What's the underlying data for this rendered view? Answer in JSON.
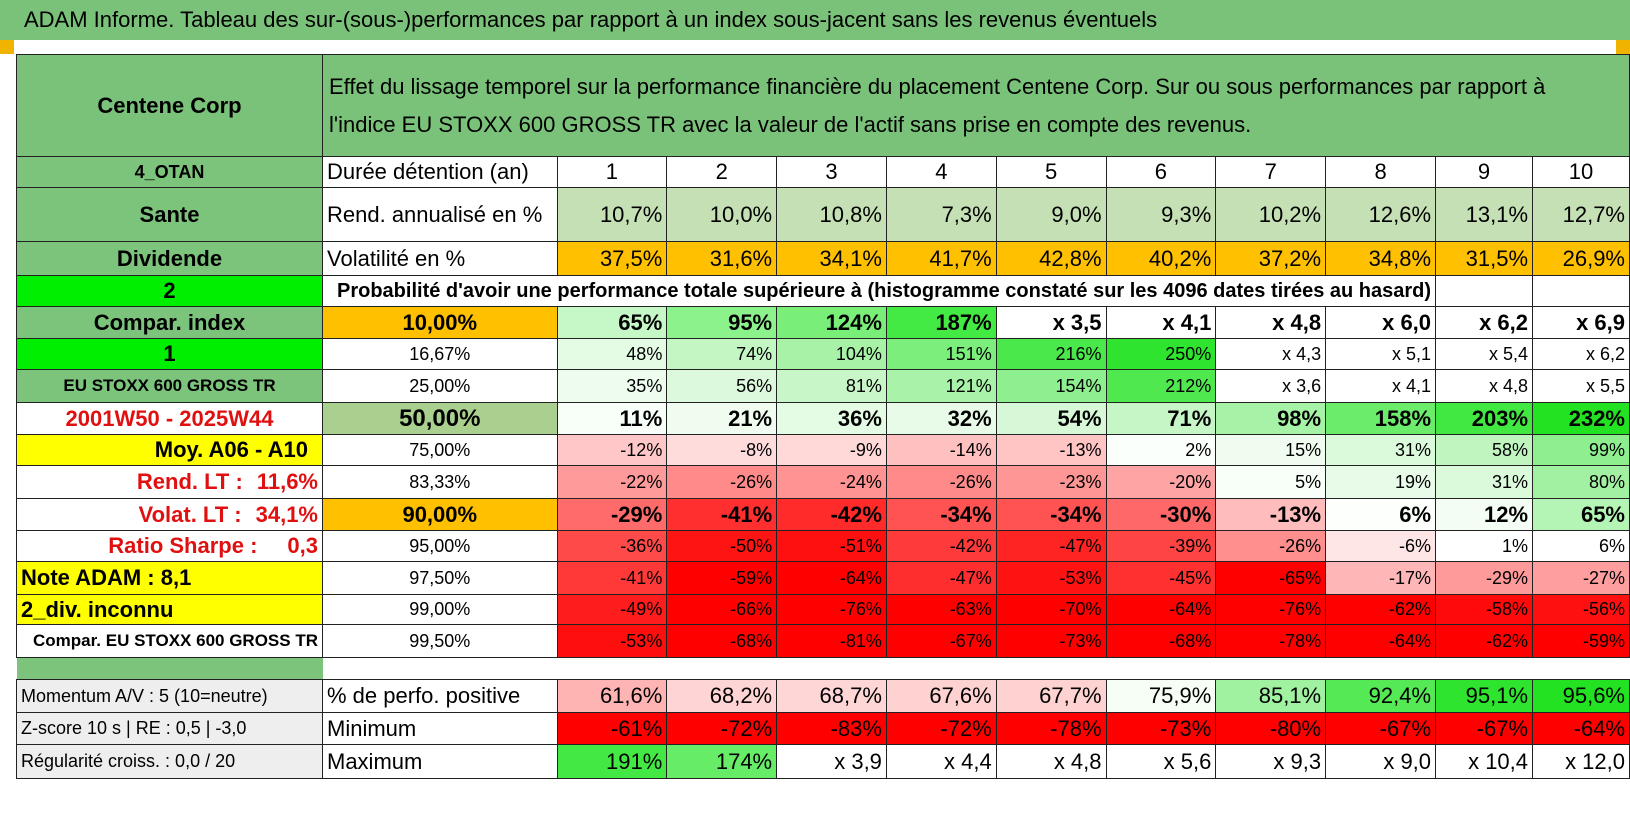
{
  "window_title": "ADAM Informe. Tableau des sur-(sous-)performances par rapport à un index sous-jacent sans les revenus éventuels",
  "header": {
    "company": "Centene Corp",
    "description_line1": "Effet du lissage temporel sur la performance financière du placement Centene Corp. Sur ou sous performances par rapport à",
    "description_line2": "l'indice EU STOXX 600 GROSS TR avec la valeur de l'actif sans prise en compte des revenus."
  },
  "colors": {
    "title_green": "#7ac27a",
    "orange": "#ffc000",
    "yellow": "#ffff00",
    "bright_green": "#00ee00",
    "red_text": "#e01010"
  },
  "left_labels": {
    "code": "4_OTAN",
    "sector": "Sante",
    "type": "Dividende",
    "choice2": "2",
    "compar_index": "Compar. index",
    "choice1": "1",
    "index_name": "EU STOXX 600 GROSS TR",
    "period": "2001W50 - 2025W44",
    "moy": "Moy. A06 - A10",
    "rend_lt_label": "Rend. LT :",
    "rend_lt_value": "11,6%",
    "volat_lt_label": "Volat. LT :",
    "volat_lt_value": "34,1%",
    "sharpe_label": "Ratio Sharpe :",
    "sharpe_value": "0,3",
    "note": "Note ADAM : 8,1",
    "div": "2_div. inconnu",
    "compar_full": "Compar. EU STOXX 600 GROSS TR"
  },
  "duration": {
    "label": "Durée détention (an)",
    "years": [
      "1",
      "2",
      "3",
      "4",
      "5",
      "6",
      "7",
      "8",
      "9",
      "10"
    ]
  },
  "rend": {
    "label": "Rend. annualisé en %",
    "values": [
      "10,7%",
      "10,0%",
      "10,8%",
      "7,3%",
      "9,0%",
      "9,3%",
      "10,2%",
      "12,6%",
      "13,1%",
      "12,7%"
    ]
  },
  "volat": {
    "label": "Volatilité en %",
    "values": [
      "37,5%",
      "31,6%",
      "34,1%",
      "41,7%",
      "42,8%",
      "40,2%",
      "37,2%",
      "34,8%",
      "31,5%",
      "26,9%"
    ]
  },
  "prob_title": "Probabilité d'avoir une performance totale supérieure à (histogramme constaté sur les 4096 dates tirées au hasard)",
  "prob_rows": [
    {
      "pct": "10,00%",
      "values": [
        "65%",
        "95%",
        "124%",
        "187%",
        "x 3,5",
        "x 4,1",
        "x 4,8",
        "x 6,0",
        "x 6,2",
        "x 6,9"
      ]
    },
    {
      "pct": "16,67%",
      "values": [
        "48%",
        "74%",
        "104%",
        "151%",
        "216%",
        "250%",
        "x 4,3",
        "x 5,1",
        "x 5,4",
        "x 6,2"
      ]
    },
    {
      "pct": "25,00%",
      "values": [
        "35%",
        "56%",
        "81%",
        "121%",
        "154%",
        "212%",
        "x 3,6",
        "x 4,1",
        "x 4,8",
        "x 5,5"
      ]
    },
    {
      "pct": "50,00%",
      "values": [
        "11%",
        "21%",
        "36%",
        "32%",
        "54%",
        "71%",
        "98%",
        "158%",
        "203%",
        "232%"
      ]
    },
    {
      "pct": "75,00%",
      "values": [
        "-12%",
        "-8%",
        "-9%",
        "-14%",
        "-13%",
        "2%",
        "15%",
        "31%",
        "58%",
        "99%"
      ]
    },
    {
      "pct": "83,33%",
      "values": [
        "-22%",
        "-26%",
        "-24%",
        "-26%",
        "-23%",
        "-20%",
        "5%",
        "19%",
        "31%",
        "80%"
      ]
    },
    {
      "pct": "90,00%",
      "values": [
        "-29%",
        "-41%",
        "-42%",
        "-34%",
        "-34%",
        "-30%",
        "-13%",
        "6%",
        "12%",
        "65%"
      ]
    },
    {
      "pct": "95,00%",
      "values": [
        "-36%",
        "-50%",
        "-51%",
        "-42%",
        "-47%",
        "-39%",
        "-26%",
        "-6%",
        "1%",
        "6%"
      ]
    },
    {
      "pct": "97,50%",
      "values": [
        "-41%",
        "-59%",
        "-64%",
        "-47%",
        "-53%",
        "-45%",
        "-65%",
        "-17%",
        "-29%",
        "-27%"
      ]
    },
    {
      "pct": "99,00%",
      "values": [
        "-49%",
        "-66%",
        "-76%",
        "-63%",
        "-70%",
        "-64%",
        "-76%",
        "-62%",
        "-58%",
        "-56%"
      ]
    },
    {
      "pct": "99,50%",
      "values": [
        "-53%",
        "-68%",
        "-81%",
        "-67%",
        "-73%",
        "-68%",
        "-78%",
        "-64%",
        "-62%",
        "-59%"
      ]
    }
  ],
  "bottom": {
    "momentum": "Momentum A/V : 5 (10=neutre)",
    "zscore": "Z-score 10 s | RE : 0,5 | -3,0",
    "regularite": "Régularité croiss. : 0,0 / 20",
    "pos_label": "% de perfo. positive",
    "pos_values": [
      "61,6%",
      "68,2%",
      "68,7%",
      "67,6%",
      "67,7%",
      "75,9%",
      "85,1%",
      "92,4%",
      "95,1%",
      "95,6%"
    ],
    "min_label": "Minimum",
    "min_values": [
      "-61%",
      "-72%",
      "-83%",
      "-72%",
      "-78%",
      "-73%",
      "-80%",
      "-67%",
      "-67%",
      "-64%"
    ],
    "max_label": "Maximum",
    "max_values": [
      "191%",
      "174%",
      "x 3,9",
      "x 4,4",
      "x 4,8",
      "x 5,6",
      "x 9,3",
      "x 9,0",
      "x 10,4",
      "x 12,0"
    ]
  }
}
